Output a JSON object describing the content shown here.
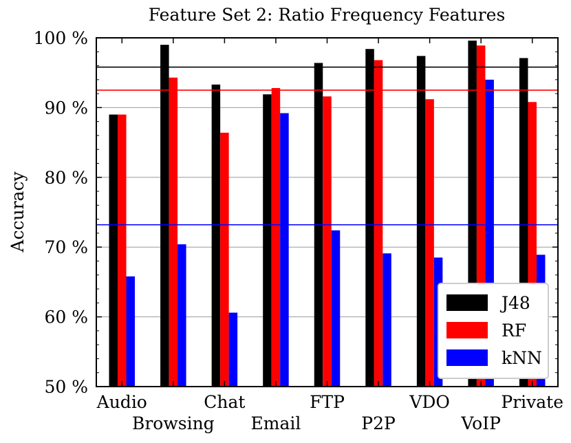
{
  "chart_data": {
    "type": "bar",
    "title": "Feature Set 2: Ratio Frequency Features",
    "xlabel": "",
    "ylabel": "Accuracy",
    "ylim": [
      50,
      100
    ],
    "yticks": [
      50,
      60,
      70,
      80,
      90,
      100
    ],
    "ytick_labels": [
      "50 %",
      "60 %",
      "70 %",
      "80 %",
      "90 %",
      "100 %"
    ],
    "grid": true,
    "categories": [
      "Audio",
      "Browsing",
      "Chat",
      "Email",
      "FTP",
      "P2P",
      "VDO",
      "VoIP",
      "Private"
    ],
    "series": [
      {
        "name": "J48",
        "color": "#000000",
        "values": [
          89.0,
          99.0,
          93.3,
          91.9,
          96.4,
          98.4,
          97.4,
          99.6,
          97.1
        ],
        "mean": 95.8
      },
      {
        "name": "RF",
        "color": "#ff0000",
        "values": [
          89.0,
          94.3,
          86.4,
          92.8,
          91.6,
          96.8,
          91.2,
          98.9,
          90.8
        ],
        "mean": 92.5
      },
      {
        "name": "kNN",
        "color": "#0000ff",
        "values": [
          65.8,
          70.4,
          60.6,
          89.2,
          72.4,
          69.1,
          68.5,
          94.0,
          68.9
        ],
        "mean": 73.2
      }
    ],
    "legend": {
      "position": "bottom-right",
      "entries": [
        "J48",
        "RF",
        "kNN"
      ]
    }
  }
}
